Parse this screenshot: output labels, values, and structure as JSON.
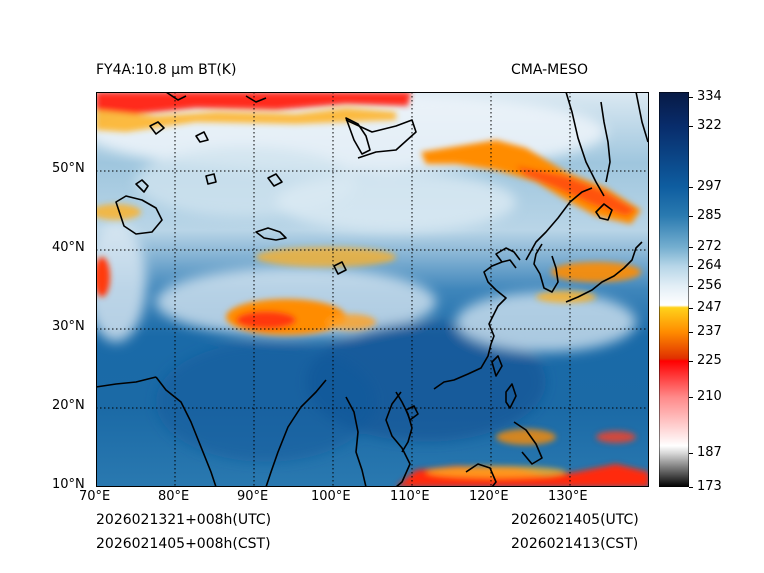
{
  "header": {
    "title_left": "FY4A:10.8 µm BT(K)",
    "title_right": "CMA-MESO"
  },
  "footer": {
    "init_utc": "2026021321+008h(UTC)",
    "init_cst": "2026021405+008h(CST)",
    "valid_utc": "2026021405(UTC)",
    "valid_cst": "2026021413(CST)"
  },
  "map": {
    "lon_range": [
      70,
      140
    ],
    "lat_range": [
      10,
      60
    ],
    "lon_ticks": [
      {
        "value": 70,
        "label": "70°E"
      },
      {
        "value": 80,
        "label": "80°E"
      },
      {
        "value": 90,
        "label": "90°E"
      },
      {
        "value": 100,
        "label": "100°E"
      },
      {
        "value": 110,
        "label": "110°E"
      },
      {
        "value": 120,
        "label": "120°E"
      },
      {
        "value": 130,
        "label": "130°E"
      }
    ],
    "lat_ticks": [
      {
        "value": 10,
        "label": "10°N"
      },
      {
        "value": 20,
        "label": "20°N"
      },
      {
        "value": 30,
        "label": "30°N"
      },
      {
        "value": 40,
        "label": "40°N"
      },
      {
        "value": 50,
        "label": "50°N"
      }
    ]
  },
  "colorbar": {
    "min": 173,
    "max": 336,
    "ticks": [
      334,
      322,
      297,
      285,
      272,
      264,
      256,
      247,
      237,
      225,
      210,
      187,
      173
    ],
    "labels": [
      "334",
      "322",
      "297",
      "285",
      "272",
      "264",
      "256",
      "247",
      "237",
      "225",
      "210",
      "187",
      "173"
    ],
    "stops": [
      {
        "value": 173,
        "color": "#000000"
      },
      {
        "value": 187,
        "color": "#d8d8d8"
      },
      {
        "value": 190,
        "color": "#ffffff"
      },
      {
        "value": 210,
        "color": "#ff8a8a"
      },
      {
        "value": 225,
        "color": "#ff0000"
      },
      {
        "value": 226,
        "color": "#e03000"
      },
      {
        "value": 237,
        "color": "#ff8c00"
      },
      {
        "value": 247,
        "color": "#ffd21a"
      },
      {
        "value": 248,
        "color": "#ffffff"
      },
      {
        "value": 256,
        "color": "#e2eef6"
      },
      {
        "value": 264,
        "color": "#b7d6e8"
      },
      {
        "value": 272,
        "color": "#74aecf"
      },
      {
        "value": 285,
        "color": "#2a7ab0"
      },
      {
        "value": 297,
        "color": "#0e5da0"
      },
      {
        "value": 322,
        "color": "#082c6b"
      },
      {
        "value": 336,
        "color": "#071a45"
      }
    ]
  },
  "colors": {
    "grid": "#000000",
    "coast": "#000000"
  }
}
